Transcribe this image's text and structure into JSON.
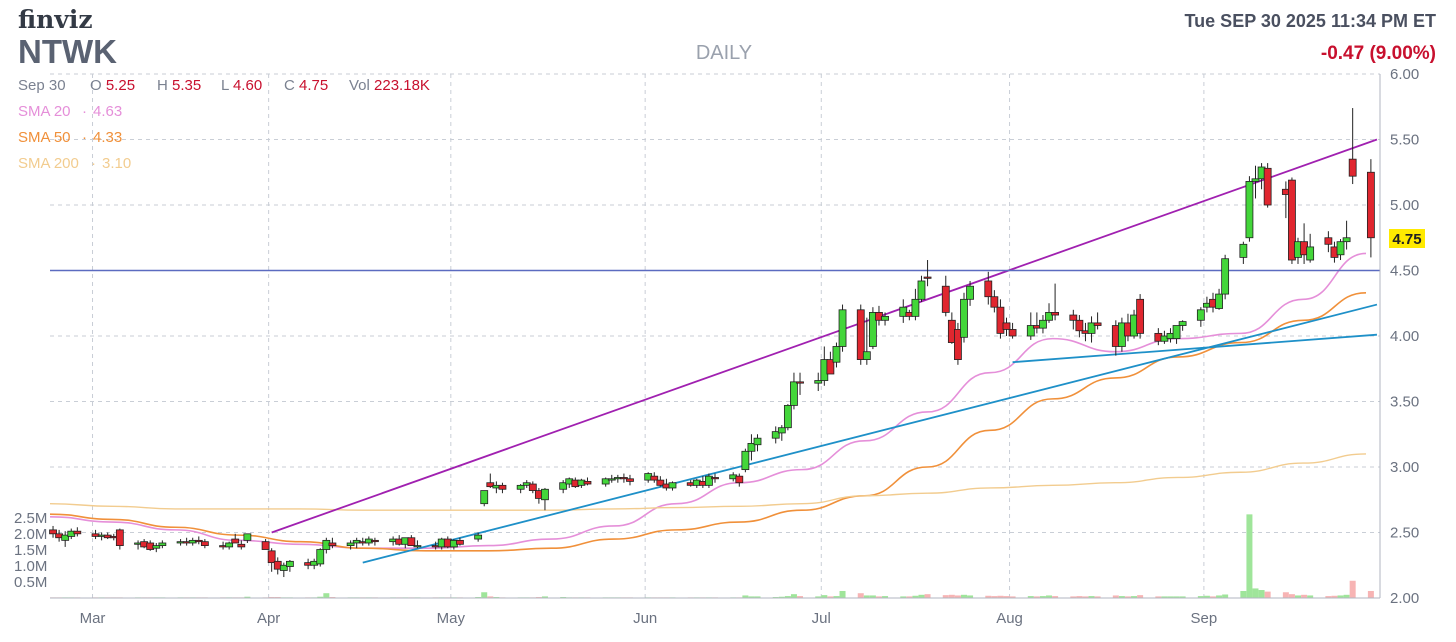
{
  "header": {
    "logo": "finviz",
    "ticker": "NTWK",
    "period": "DAILY",
    "datetime": "Tue SEP 30 2025 11:34 PM ET",
    "change": "-0.47 (9.00%)"
  },
  "ohlc": {
    "date": "Sep 30",
    "o_label": "O",
    "o": "5.25",
    "h_label": "H",
    "h": "5.35",
    "l_label": "L",
    "l": "4.60",
    "c_label": "C",
    "c": "4.75",
    "vol_label": "Vol",
    "vol": "223.18K"
  },
  "sma": [
    {
      "label": "SMA 20",
      "sep": "·",
      "value": "4.63",
      "color": "#e58fd9"
    },
    {
      "label": "SMA 50",
      "sep": "·",
      "value": "4.33",
      "color": "#f0903a"
    },
    {
      "label": "SMA 200",
      "sep": "·",
      "value": "3.10",
      "color": "#f2cc8f"
    }
  ],
  "last_price_tag": "4.75",
  "colors": {
    "up_candle": "#43d63a",
    "down_candle": "#e0262f",
    "up_volume": "#9fe59a",
    "down_volume": "#f7b4b4",
    "resistance_line": "#a020b0",
    "trend_line": "#1e90c8",
    "horizontal_line": "#5b6bc0",
    "price_tag": "#ffea00",
    "change_text": "#c8102e"
  },
  "chart_data": {
    "type": "candlestick",
    "period": "daily",
    "ylim": [
      2.0,
      6.0
    ],
    "y_ticks": [
      "6.00",
      "5.50",
      "5.00",
      "4.50",
      "4.00",
      "3.50",
      "3.00",
      "2.50",
      "2.00"
    ],
    "volume_ticks": [
      "2.5M",
      "2.0M",
      "1.5M",
      "1.0M",
      "0.5M"
    ],
    "x_ticks": [
      "Mar",
      "Apr",
      "May",
      "Jun",
      "Jul",
      "Aug",
      "Sep"
    ],
    "grid": true,
    "start_date": "2025-02-24",
    "series": [
      {
        "name": "SMA 20",
        "values": [
          2.62,
          2.58,
          2.52,
          2.44,
          2.41,
          2.38,
          2.38,
          2.4,
          2.45,
          2.55,
          2.72,
          2.88,
          2.98,
          3.2,
          3.42,
          3.72,
          3.98,
          3.88,
          3.98,
          4.02,
          4.28,
          4.63
        ]
      },
      {
        "name": "SMA 50",
        "values": [
          2.64,
          2.6,
          2.54,
          2.48,
          2.43,
          2.38,
          2.36,
          2.36,
          2.38,
          2.45,
          2.52,
          2.58,
          2.67,
          2.78,
          3.0,
          3.28,
          3.52,
          3.68,
          3.84,
          3.95,
          4.12,
          4.33
        ]
      },
      {
        "name": "SMA 200",
        "values": [
          2.72,
          2.7,
          2.68,
          2.68,
          2.68,
          2.67,
          2.67,
          2.67,
          2.67,
          2.68,
          2.69,
          2.7,
          2.72,
          2.78,
          2.8,
          2.84,
          2.86,
          2.88,
          2.92,
          2.96,
          3.03,
          3.1
        ]
      }
    ],
    "candles": [
      [
        2.52,
        2.55,
        2.46,
        2.49
      ],
      [
        2.49,
        2.52,
        2.43,
        2.46
      ],
      [
        2.44,
        2.51,
        2.39,
        2.48
      ],
      [
        2.47,
        2.53,
        2.45,
        2.51
      ],
      [
        2.51,
        2.54,
        2.47,
        2.49
      ],
      [
        2.49,
        2.52,
        2.45,
        2.47
      ],
      [
        2.47,
        2.5,
        2.44,
        2.48
      ],
      [
        2.48,
        2.5,
        2.45,
        2.46
      ],
      [
        2.47,
        2.49,
        2.44,
        2.46
      ],
      [
        2.52,
        2.53,
        2.37,
        2.4
      ],
      [
        2.41,
        2.44,
        2.37,
        2.42
      ],
      [
        2.43,
        2.45,
        2.38,
        2.39
      ],
      [
        2.42,
        2.44,
        2.36,
        2.37
      ],
      [
        2.38,
        2.42,
        2.35,
        2.4
      ],
      [
        2.4,
        2.44,
        2.38,
        2.42
      ],
      [
        2.42,
        2.45,
        2.4,
        2.43
      ],
      [
        2.43,
        2.46,
        2.4,
        2.42
      ],
      [
        2.42,
        2.46,
        2.4,
        2.44
      ],
      [
        2.44,
        2.47,
        2.41,
        2.43
      ],
      [
        2.43,
        2.45,
        2.38,
        2.4
      ],
      [
        2.4,
        2.43,
        2.37,
        2.39
      ],
      [
        2.39,
        2.43,
        2.37,
        2.42
      ],
      [
        2.45,
        2.49,
        2.42,
        2.42
      ],
      [
        2.41,
        2.44,
        2.37,
        2.39
      ],
      [
        2.44,
        2.49,
        2.42,
        2.49
      ],
      [
        2.43,
        2.45,
        2.38,
        2.37
      ],
      [
        2.36,
        2.38,
        2.2,
        2.27
      ],
      [
        2.28,
        2.31,
        2.18,
        2.22
      ],
      [
        2.21,
        2.27,
        2.16,
        2.25
      ],
      [
        2.24,
        2.29,
        2.2,
        2.28
      ],
      [
        2.27,
        2.3,
        2.22,
        2.25
      ],
      [
        2.25,
        2.3,
        2.22,
        2.28
      ],
      [
        2.26,
        2.38,
        2.24,
        2.37
      ],
      [
        2.37,
        2.46,
        2.34,
        2.44
      ],
      [
        2.42,
        2.46,
        2.38,
        2.4
      ],
      [
        2.4,
        2.44,
        2.37,
        2.42
      ],
      [
        2.42,
        2.46,
        2.38,
        2.44
      ],
      [
        2.43,
        2.46,
        2.4,
        2.42
      ],
      [
        2.42,
        2.47,
        2.4,
        2.45
      ],
      [
        2.44,
        2.46,
        2.4,
        2.43
      ],
      [
        2.43,
        2.47,
        2.4,
        2.45
      ],
      [
        2.45,
        2.48,
        2.4,
        2.41
      ],
      [
        2.41,
        2.44,
        2.38,
        2.46
      ],
      [
        2.46,
        2.48,
        2.4,
        2.4
      ],
      [
        2.4,
        2.44,
        2.38,
        2.4
      ],
      [
        2.4,
        2.43,
        2.37,
        2.39
      ],
      [
        2.39,
        2.46,
        2.37,
        2.45
      ],
      [
        2.45,
        2.47,
        2.38,
        2.39
      ],
      [
        2.39,
        2.45,
        2.37,
        2.44
      ],
      [
        2.44,
        2.46,
        2.4,
        2.41
      ],
      [
        2.45,
        2.5,
        2.43,
        2.48
      ],
      [
        2.72,
        2.81,
        2.7,
        2.82
      ],
      [
        2.88,
        2.95,
        2.84,
        2.85
      ],
      [
        2.84,
        2.89,
        2.8,
        2.86
      ],
      [
        2.86,
        2.88,
        2.8,
        2.83
      ],
      [
        2.83,
        2.87,
        2.8,
        2.86
      ],
      [
        2.86,
        2.9,
        2.84,
        2.88
      ],
      [
        2.87,
        2.89,
        2.8,
        2.82
      ],
      [
        2.82,
        2.84,
        2.72,
        2.76
      ],
      [
        2.75,
        2.84,
        2.67,
        2.83
      ],
      [
        2.83,
        2.9,
        2.8,
        2.88
      ],
      [
        2.87,
        2.92,
        2.84,
        2.91
      ],
      [
        2.9,
        2.92,
        2.84,
        2.85
      ],
      [
        2.86,
        2.91,
        2.84,
        2.9
      ],
      [
        2.89,
        2.92,
        2.86,
        2.87
      ],
      [
        2.87,
        2.92,
        2.85,
        2.91
      ],
      [
        2.9,
        2.94,
        2.88,
        2.91
      ],
      [
        2.91,
        2.94,
        2.88,
        2.92
      ],
      [
        2.92,
        2.95,
        2.88,
        2.91
      ],
      [
        2.91,
        2.94,
        2.86,
        2.89
      ],
      [
        2.9,
        2.96,
        2.88,
        2.95
      ],
      [
        2.93,
        2.96,
        2.88,
        2.9
      ],
      [
        2.9,
        2.93,
        2.85,
        2.86
      ],
      [
        2.87,
        2.91,
        2.82,
        2.84
      ],
      [
        2.84,
        2.89,
        2.82,
        2.88
      ],
      [
        2.88,
        2.9,
        2.85,
        2.86
      ],
      [
        2.86,
        2.91,
        2.84,
        2.9
      ],
      [
        2.89,
        2.93,
        2.84,
        2.86
      ],
      [
        2.86,
        2.95,
        2.84,
        2.93
      ],
      [
        2.92,
        2.95,
        2.88,
        2.91
      ],
      [
        2.91,
        2.96,
        2.89,
        2.94
      ],
      [
        2.93,
        2.95,
        2.85,
        2.88
      ],
      [
        2.98,
        3.14,
        2.96,
        3.12
      ],
      [
        3.12,
        3.25,
        3.05,
        3.18
      ],
      [
        3.17,
        3.25,
        3.12,
        3.22
      ],
      [
        3.22,
        3.31,
        3.18,
        3.27
      ],
      [
        3.26,
        3.32,
        3.2,
        3.3
      ],
      [
        3.3,
        3.48,
        3.28,
        3.47
      ],
      [
        3.47,
        3.72,
        3.44,
        3.65
      ],
      [
        3.65,
        3.72,
        3.55,
        3.64
      ],
      [
        3.64,
        3.72,
        3.58,
        3.66
      ],
      [
        3.66,
        3.92,
        3.62,
        3.82
      ],
      [
        3.82,
        3.88,
        3.74,
        3.71
      ],
      [
        3.8,
        3.95,
        3.76,
        3.92
      ],
      [
        3.92,
        4.24,
        3.88,
        4.2
      ],
      [
        4.2,
        4.24,
        3.78,
        3.82
      ],
      [
        3.82,
        4.14,
        3.78,
        3.88
      ],
      [
        3.92,
        4.22,
        3.9,
        4.18
      ],
      [
        4.18,
        4.23,
        4.08,
        4.12
      ],
      [
        4.12,
        4.18,
        4.08,
        4.15
      ],
      [
        4.15,
        4.28,
        4.1,
        4.22
      ],
      [
        4.18,
        4.2,
        4.12,
        4.15
      ],
      [
        4.15,
        4.36,
        4.12,
        4.28
      ],
      [
        4.28,
        4.46,
        4.26,
        4.42
      ],
      [
        4.45,
        4.58,
        4.38,
        4.44
      ],
      [
        4.38,
        4.46,
        4.15,
        4.18
      ],
      [
        4.12,
        4.18,
        3.94,
        3.95
      ],
      [
        4.05,
        4.1,
        3.78,
        3.82
      ],
      [
        3.99,
        4.33,
        3.95,
        4.28
      ],
      [
        4.28,
        4.42,
        4.23,
        4.38
      ],
      [
        4.42,
        4.49,
        4.24,
        4.3
      ],
      [
        4.3,
        4.35,
        4.18,
        4.22
      ],
      [
        4.22,
        4.28,
        3.98,
        4.02
      ],
      [
        4.1,
        4.14,
        4.0,
        4.05
      ],
      [
        4.05,
        4.1,
        3.98,
        4.0
      ],
      [
        4.0,
        4.18,
        3.97,
        4.08
      ],
      [
        4.08,
        4.18,
        4.02,
        4.06
      ],
      [
        4.06,
        4.16,
        4.02,
        4.12
      ],
      [
        4.12,
        4.25,
        4.1,
        4.18
      ],
      [
        4.18,
        4.4,
        4.12,
        4.16
      ],
      [
        4.16,
        4.2,
        4.05,
        4.12
      ],
      [
        4.12,
        4.16,
        3.99,
        4.04
      ],
      [
        4.04,
        4.1,
        3.96,
        4.02
      ],
      [
        4.02,
        4.15,
        3.95,
        4.1
      ],
      [
        4.1,
        4.18,
        4.05,
        4.08
      ],
      [
        4.08,
        4.12,
        3.85,
        3.92
      ],
      [
        3.92,
        4.14,
        3.88,
        4.1
      ],
      [
        4.1,
        4.17,
        3.96,
        4.0
      ],
      [
        4.0,
        4.2,
        3.98,
        4.16
      ],
      [
        4.28,
        4.32,
        3.98,
        4.02
      ],
      [
        4.02,
        4.06,
        3.93,
        3.96
      ],
      [
        3.96,
        4.04,
        3.94,
        4.0
      ],
      [
        3.98,
        4.06,
        3.95,
        4.02
      ],
      [
        3.98,
        4.05,
        3.94,
        4.08
      ],
      [
        4.08,
        4.12,
        4.04,
        4.11
      ],
      [
        4.12,
        4.22,
        4.07,
        4.2
      ],
      [
        4.22,
        4.3,
        4.18,
        4.25
      ],
      [
        4.28,
        4.33,
        4.18,
        4.22
      ],
      [
        4.21,
        4.36,
        4.2,
        4.32
      ],
      [
        4.32,
        4.62,
        4.28,
        4.59
      ],
      [
        4.6,
        4.72,
        4.55,
        4.7
      ],
      [
        4.75,
        5.22,
        4.72,
        5.18
      ],
      [
        5.18,
        5.3,
        5.05,
        5.2
      ],
      [
        5.2,
        5.32,
        5.12,
        5.29
      ],
      [
        5.28,
        5.32,
        4.98,
        5.0
      ],
      [
        5.12,
        5.18,
        4.9,
        5.08
      ],
      [
        5.19,
        5.21,
        4.55,
        4.58
      ],
      [
        4.6,
        4.75,
        4.55,
        4.72
      ],
      [
        4.72,
        4.86,
        4.55,
        4.62
      ],
      [
        4.58,
        4.78,
        4.56,
        4.68
      ],
      [
        4.75,
        4.8,
        4.64,
        4.7
      ],
      [
        4.68,
        4.72,
        4.56,
        4.6
      ],
      [
        4.62,
        4.74,
        4.58,
        4.72
      ],
      [
        4.72,
        4.88,
        4.66,
        4.75
      ],
      [
        5.35,
        5.74,
        5.16,
        5.22
      ],
      [
        5.25,
        5.35,
        4.6,
        4.75
      ]
    ],
    "volume": [
      0.02,
      0.02,
      0.02,
      0.02,
      0.02,
      0.02,
      0.02,
      0.02,
      0.02,
      0.02,
      0.02,
      0.02,
      0.02,
      0.02,
      0.02,
      0.02,
      0.02,
      0.02,
      0.02,
      0.02,
      0.02,
      0.02,
      0.02,
      0.02,
      0.04,
      0.02,
      0.03,
      0.03,
      0.02,
      0.02,
      0.02,
      0.02,
      0.04,
      0.15,
      0.03,
      0.02,
      0.02,
      0.02,
      0.02,
      0.02,
      0.02,
      0.02,
      0.02,
      0.02,
      0.02,
      0.02,
      0.02,
      0.02,
      0.02,
      0.02,
      0.03,
      0.18,
      0.05,
      0.03,
      0.02,
      0.02,
      0.02,
      0.02,
      0.03,
      0.05,
      0.03,
      0.02,
      0.02,
      0.02,
      0.02,
      0.02,
      0.02,
      0.02,
      0.02,
      0.02,
      0.02,
      0.02,
      0.02,
      0.02,
      0.02,
      0.02,
      0.02,
      0.02,
      0.02,
      0.02,
      0.02,
      0.02,
      0.08,
      0.05,
      0.05,
      0.03,
      0.04,
      0.06,
      0.12,
      0.06,
      0.05,
      0.09,
      0.05,
      0.06,
      0.22,
      0.15,
      0.08,
      0.08,
      0.05,
      0.06,
      0.05,
      0.05,
      0.07,
      0.1,
      0.12,
      0.09,
      0.1,
      0.08,
      0.1,
      0.08,
      0.07,
      0.06,
      0.07,
      0.06,
      0.05,
      0.06,
      0.05,
      0.06,
      0.08,
      0.06,
      0.05,
      0.06,
      0.05,
      0.06,
      0.05,
      0.08,
      0.06,
      0.05,
      0.06,
      0.09,
      0.05,
      0.05,
      0.05,
      0.05,
      0.05,
      0.06,
      0.07,
      0.05,
      0.08,
      0.11,
      0.22,
      2.62,
      0.3,
      0.25,
      0.2,
      0.18,
      0.12,
      0.08,
      0.1,
      0.08,
      0.06,
      0.07,
      0.08,
      0.1,
      0.54,
      0.22
    ],
    "annotations": [
      {
        "type": "line",
        "name": "upper-channel",
        "from": [
          "2025-04-01",
          2.5
        ],
        "to": [
          "2025-09-30",
          5.5
        ]
      },
      {
        "type": "line",
        "name": "lower-trend",
        "from": [
          "2025-04-16",
          2.27
        ],
        "to": [
          "2025-09-30",
          4.24
        ]
      },
      {
        "type": "line",
        "name": "august-support",
        "from": [
          "2025-08-01",
          3.8
        ],
        "to": [
          "2025-09-30",
          4.01
        ]
      },
      {
        "type": "hline",
        "name": "resistance-4.50",
        "value": 4.5
      }
    ]
  }
}
